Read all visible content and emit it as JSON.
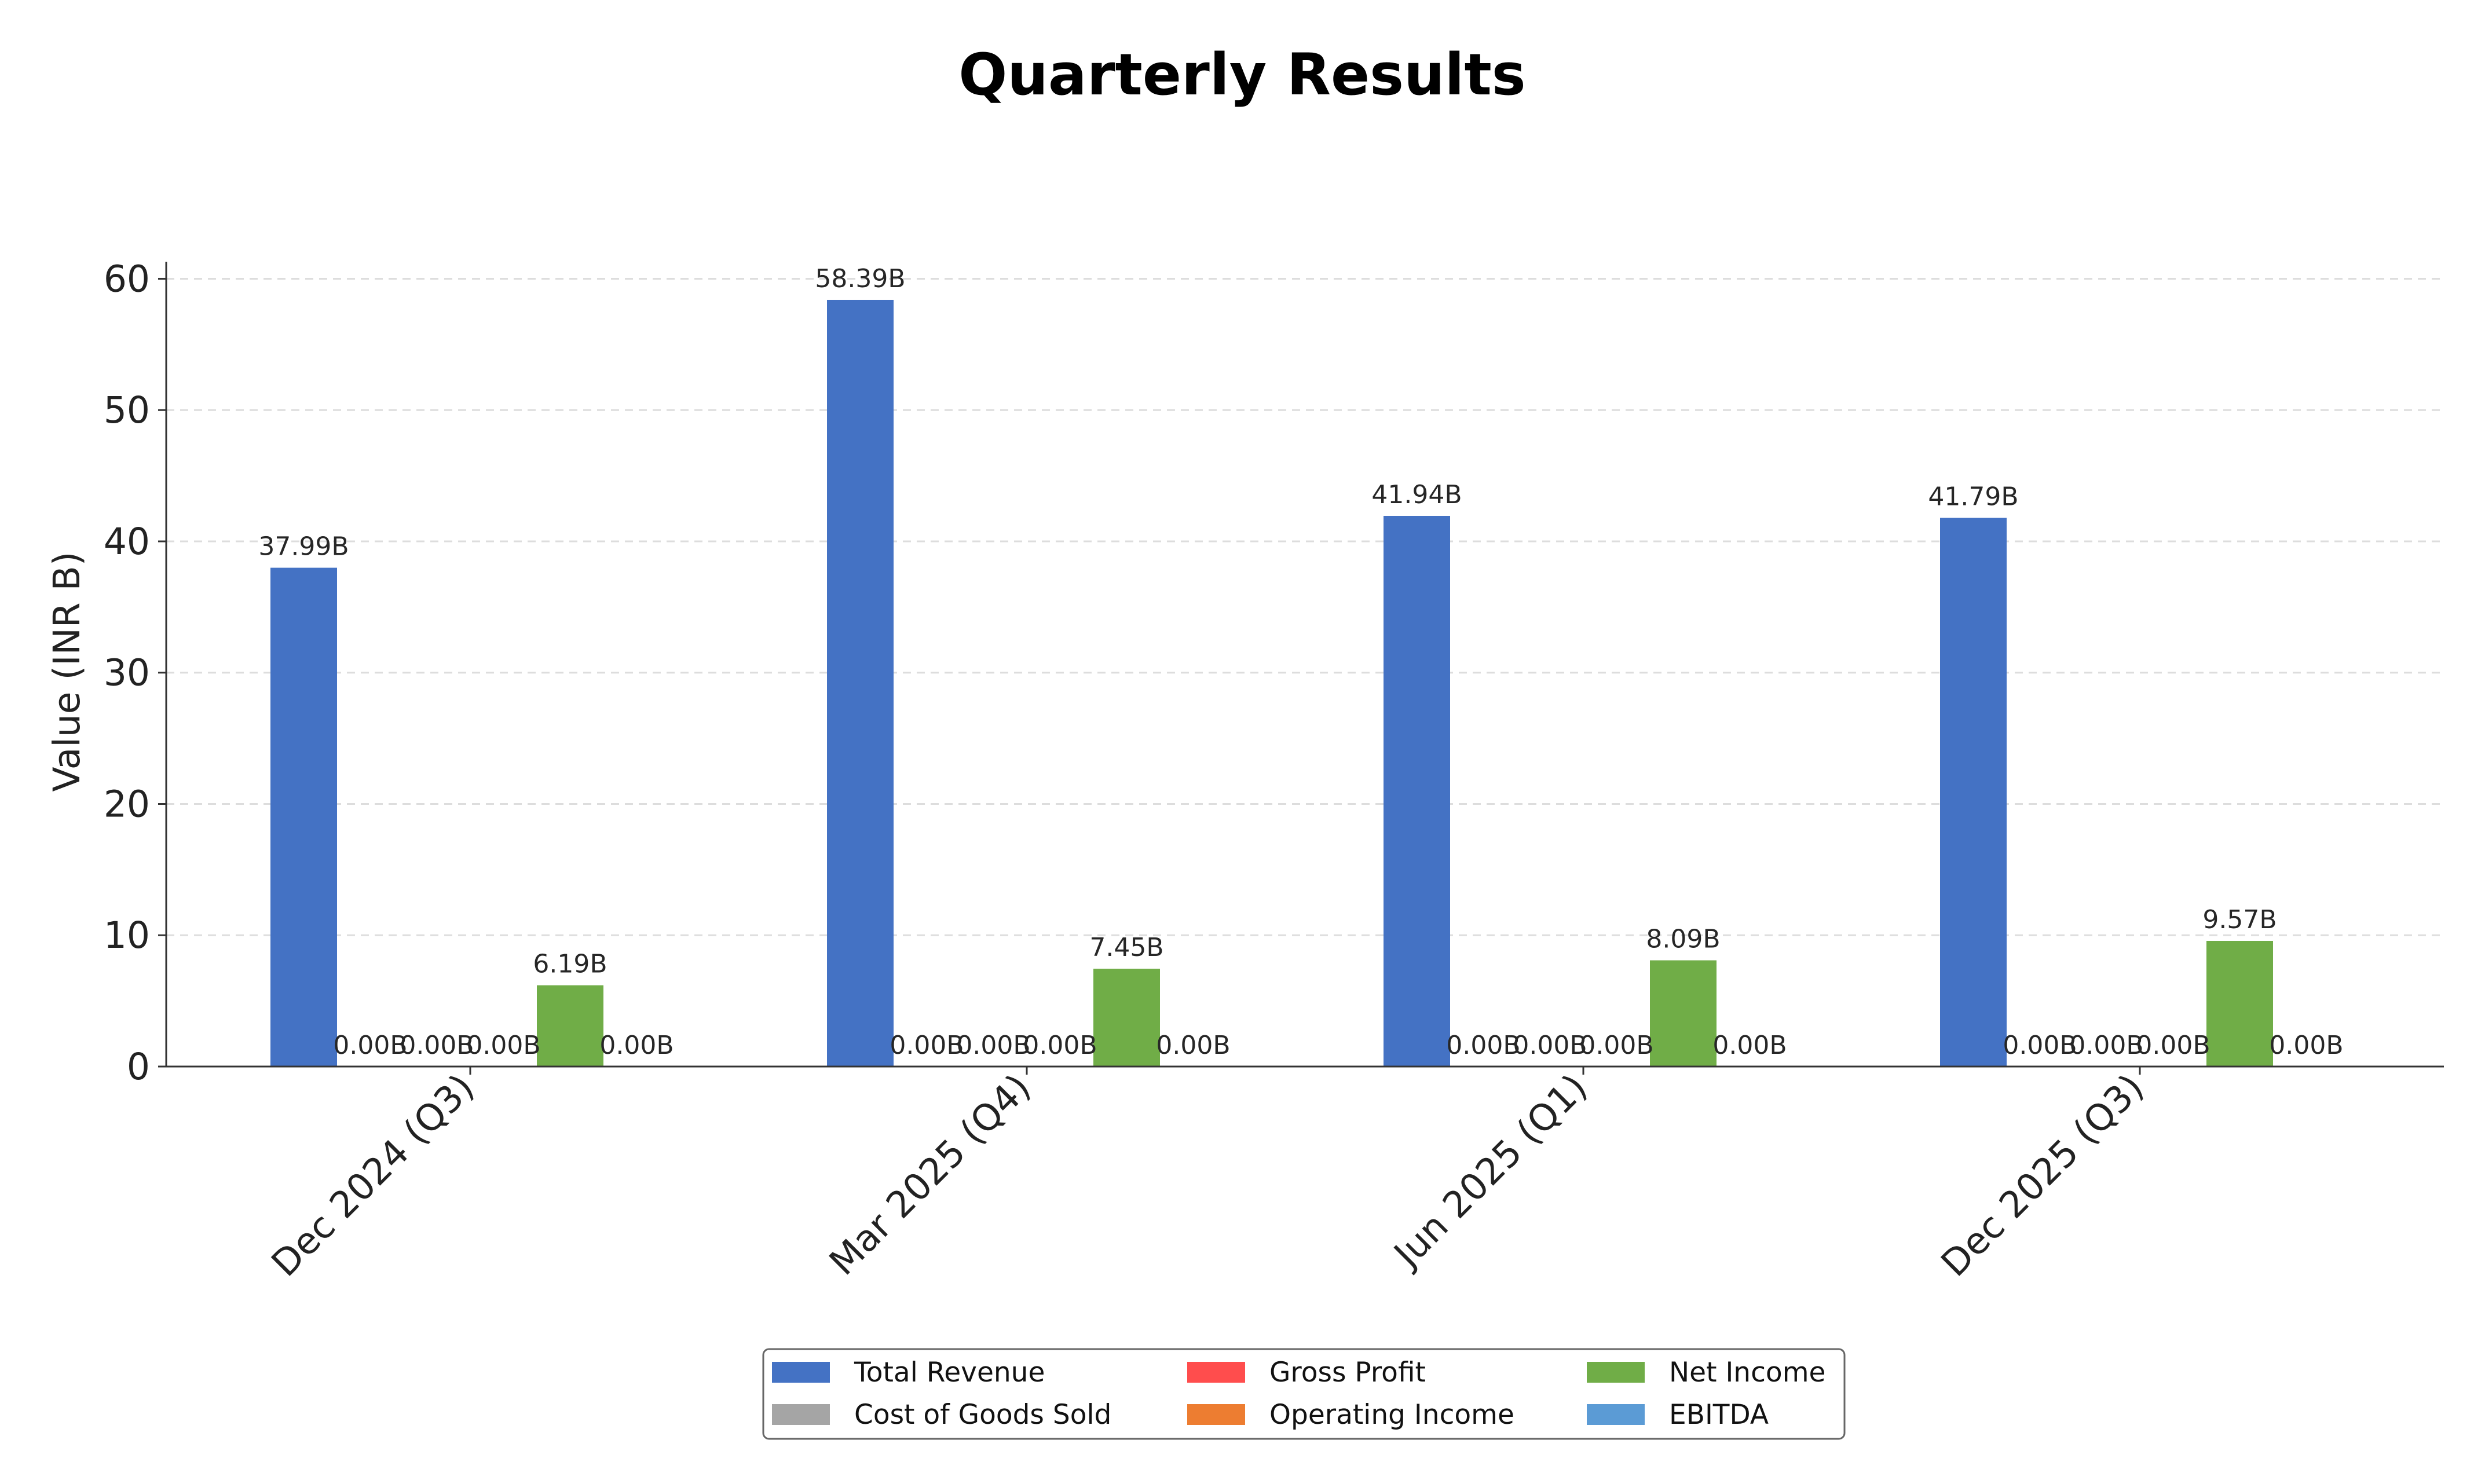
{
  "chart_data": {
    "type": "bar",
    "title": "Quarterly Results",
    "xlabel": "",
    "ylabel": "Value (INR B)",
    "ylim": [
      0,
      61.3
    ],
    "yticks": [
      0,
      10,
      20,
      30,
      40,
      50,
      60
    ],
    "grid": "y-dashed",
    "legend_position": "bottom-center",
    "categories": [
      "Dec 2024 (Q3)",
      "Mar 2025 (Q4)",
      "Jun 2025 (Q1)",
      "Dec 2025 (Q3)"
    ],
    "series": [
      {
        "name": "Total Revenue",
        "color": "#4472c4",
        "values": [
          37.99,
          58.39,
          41.94,
          41.79
        ],
        "labels": [
          "37.99B",
          "58.39B",
          "41.94B",
          "41.79B"
        ]
      },
      {
        "name": "Cost of Goods Sold",
        "color": "#a5a5a5",
        "values": [
          0,
          0,
          0,
          0
        ],
        "labels": [
          "0.00B",
          "0.00B",
          "0.00B",
          "0.00B"
        ]
      },
      {
        "name": "Gross Profit",
        "color": "#ff4d4d",
        "values": [
          0,
          0,
          0,
          0
        ],
        "labels": [
          "0.00B",
          "0.00B",
          "0.00B",
          "0.00B"
        ]
      },
      {
        "name": "Operating Income",
        "color": "#ed7d31",
        "values": [
          0,
          0,
          0,
          0
        ],
        "labels": [
          "0.00B",
          "0.00B",
          "0.00B",
          "0.00B"
        ]
      },
      {
        "name": "Net Income",
        "color": "#70ad47",
        "values": [
          6.19,
          7.45,
          8.09,
          9.57
        ],
        "labels": [
          "6.19B",
          "7.45B",
          "8.09B",
          "9.57B"
        ]
      },
      {
        "name": "EBITDA",
        "color": "#5b9bd5",
        "values": [
          0,
          0,
          0,
          0
        ],
        "labels": [
          "0.00B",
          "0.00B",
          "0.00B",
          "0.00B"
        ]
      }
    ],
    "legend_order": [
      "Total Revenue",
      "Cost of Goods Sold",
      "Gross Profit",
      "Operating Income",
      "Net Income",
      "EBITDA"
    ]
  }
}
